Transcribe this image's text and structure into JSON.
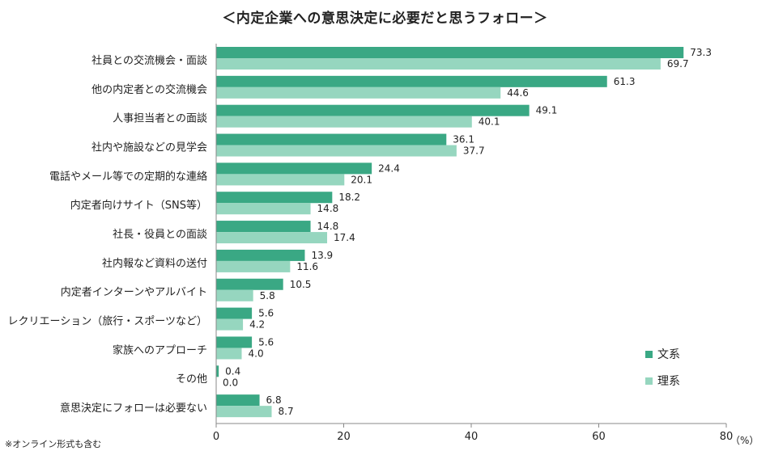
{
  "title": "＜内定企業への意思決定に必要だと思うフォロー＞",
  "footnote": "※オンライン形式も含む",
  "unit_label": "（%）",
  "chart_data": {
    "type": "bar",
    "orientation": "horizontal",
    "categories": [
      "社員との交流機会・面談",
      "他の内定者との交流機会",
      "人事担当者との面談",
      "社内や施設などの見学会",
      "電話やメール等での定期的な連絡",
      "内定者向けサイト（SNS等）",
      "社長・役員との面談",
      "社内報など資料の送付",
      "内定者インターンやアルバイト",
      "レクリエーション（旅行・スポーツなど）",
      "家族へのアプローチ",
      "その他",
      "意思決定にフォローは必要ない"
    ],
    "series": [
      {
        "name": "文系",
        "color": "#3aa884",
        "values": [
          73.3,
          61.3,
          49.1,
          36.1,
          24.4,
          18.2,
          14.8,
          13.9,
          10.5,
          5.6,
          5.6,
          0.4,
          6.8
        ]
      },
      {
        "name": "理系",
        "color": "#96d6bf",
        "values": [
          69.7,
          44.6,
          40.1,
          37.7,
          20.1,
          14.8,
          17.4,
          11.6,
          5.8,
          4.2,
          4.0,
          0.0,
          8.7
        ]
      }
    ],
    "value_labels": [
      [
        "73.3",
        "61.3",
        "49.1",
        "36.1",
        "24.4",
        "18.2",
        "14.8",
        "13.9",
        "10.5",
        "5.6",
        "5.6",
        "0.4",
        "6.8"
      ],
      [
        "69.7",
        "44.6",
        "40.1",
        "37.7",
        "20.1",
        "14.8",
        "17.4",
        "11.6",
        "5.8",
        "4.2",
        "4.0",
        "0.0",
        "8.7"
      ]
    ],
    "xlim": [
      0,
      80
    ],
    "xticks": [
      0,
      20,
      40,
      60,
      80
    ],
    "grid": false,
    "legend_position": "bottom-right"
  }
}
